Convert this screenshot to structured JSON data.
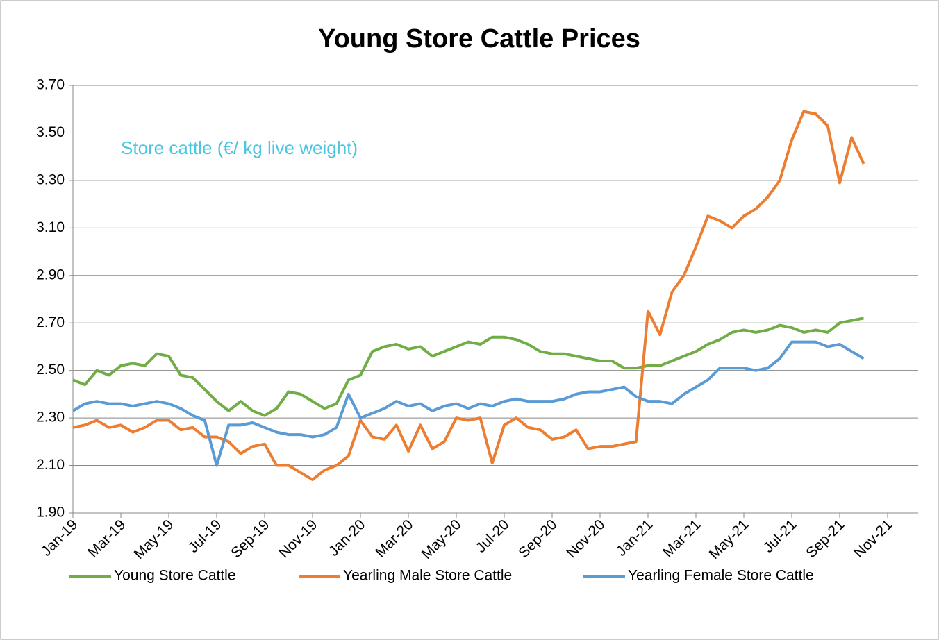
{
  "chart_data": {
    "type": "line",
    "title": "Young Store Cattle Prices",
    "annotation": "Store cattle (€/ kg live weight)",
    "x": [
      0,
      0.5,
      1,
      1.5,
      2,
      2.5,
      3,
      3.5,
      4,
      4.5,
      5,
      5.5,
      6,
      6.5,
      7,
      7.5,
      8,
      8.5,
      9,
      9.5,
      10,
      10.5,
      11,
      11.5,
      12,
      12.5,
      13,
      13.5,
      14,
      14.5,
      15,
      15.5,
      16,
      16.5,
      17,
      17.5,
      18,
      18.5,
      19,
      19.5,
      20,
      20.5,
      21,
      21.5,
      22,
      22.5,
      23,
      23.5,
      24,
      24.5,
      25,
      25.5,
      26,
      26.5,
      27,
      27.5,
      28,
      28.5,
      29,
      29.5,
      30,
      30.5,
      31,
      31.5,
      32,
      32.5,
      33
    ],
    "xlim": [
      0,
      34
    ],
    "xticks": [
      {
        "value": 0,
        "label": "Jan-19"
      },
      {
        "value": 2,
        "label": "Mar-19"
      },
      {
        "value": 4,
        "label": "May-19"
      },
      {
        "value": 6,
        "label": "Jul-19"
      },
      {
        "value": 8,
        "label": "Sep-19"
      },
      {
        "value": 10,
        "label": "Nov-19"
      },
      {
        "value": 12,
        "label": "Jan-20"
      },
      {
        "value": 14,
        "label": "Mar-20"
      },
      {
        "value": 16,
        "label": "May-20"
      },
      {
        "value": 18,
        "label": "Jul-20"
      },
      {
        "value": 20,
        "label": "Sep-20"
      },
      {
        "value": 22,
        "label": "Nov-20"
      },
      {
        "value": 24,
        "label": "Jan-21"
      },
      {
        "value": 26,
        "label": "Mar-21"
      },
      {
        "value": 28,
        "label": "May-21"
      },
      {
        "value": 30,
        "label": "Jul-21"
      },
      {
        "value": 32,
        "label": "Sep-21"
      },
      {
        "value": 34,
        "label": "Nov-21"
      }
    ],
    "ylim": [
      1.9,
      3.7
    ],
    "yticks": [
      {
        "value": 1.9,
        "label": "1.90"
      },
      {
        "value": 2.1,
        "label": "2.10"
      },
      {
        "value": 2.3,
        "label": "2.30"
      },
      {
        "value": 2.5,
        "label": "2.50"
      },
      {
        "value": 2.7,
        "label": "2.70"
      },
      {
        "value": 2.9,
        "label": "2.90"
      },
      {
        "value": 3.1,
        "label": "3.10"
      },
      {
        "value": 3.3,
        "label": "3.30"
      },
      {
        "value": 3.5,
        "label": "3.50"
      },
      {
        "value": 3.7,
        "label": "3.70"
      }
    ],
    "grid": true,
    "legend": "bottom",
    "series": [
      {
        "name": "Young Store Cattle",
        "color": "#70ad47",
        "values": [
          2.46,
          2.44,
          2.5,
          2.48,
          2.52,
          2.53,
          2.52,
          2.57,
          2.56,
          2.48,
          2.47,
          2.42,
          2.37,
          2.33,
          2.37,
          2.33,
          2.31,
          2.34,
          2.41,
          2.4,
          2.37,
          2.34,
          2.36,
          2.46,
          2.48,
          2.58,
          2.6,
          2.61,
          2.59,
          2.6,
          2.56,
          2.58,
          2.6,
          2.62,
          2.61,
          2.64,
          2.64,
          2.63,
          2.61,
          2.58,
          2.57,
          2.57,
          2.56,
          2.55,
          2.54,
          2.54,
          2.51,
          2.51,
          2.52,
          2.52,
          2.54,
          2.56,
          2.58,
          2.61,
          2.63,
          2.66,
          2.67,
          2.66,
          2.67,
          2.69,
          2.68,
          2.66,
          2.67,
          2.66,
          2.7,
          2.71,
          2.72
        ]
      },
      {
        "name": "Yearling Male Store Cattle",
        "color": "#ed7d31",
        "values": [
          2.26,
          2.27,
          2.29,
          2.26,
          2.27,
          2.24,
          2.26,
          2.29,
          2.29,
          2.25,
          2.26,
          2.22,
          2.22,
          2.2,
          2.15,
          2.18,
          2.19,
          2.1,
          2.1,
          2.07,
          2.04,
          2.08,
          2.1,
          2.14,
          2.29,
          2.22,
          2.21,
          2.27,
          2.16,
          2.27,
          2.17,
          2.2,
          2.3,
          2.29,
          2.3,
          2.11,
          2.27,
          2.3,
          2.26,
          2.25,
          2.21,
          2.22,
          2.25,
          2.17,
          2.18,
          2.18,
          2.19,
          2.2,
          2.75,
          2.65,
          2.83,
          2.9,
          3.02,
          3.15,
          3.13,
          3.1,
          3.15,
          3.18,
          3.23,
          3.3,
          3.47,
          3.59,
          3.58,
          3.53,
          3.29,
          3.48,
          3.37
        ]
      },
      {
        "name": "Yearling Female Store Cattle",
        "color": "#5b9bd5",
        "values": [
          2.33,
          2.36,
          2.37,
          2.36,
          2.36,
          2.35,
          2.36,
          2.37,
          2.36,
          2.34,
          2.31,
          2.29,
          2.1,
          2.27,
          2.27,
          2.28,
          2.26,
          2.24,
          2.23,
          2.23,
          2.22,
          2.23,
          2.26,
          2.4,
          2.3,
          2.32,
          2.34,
          2.37,
          2.35,
          2.36,
          2.33,
          2.35,
          2.36,
          2.34,
          2.36,
          2.35,
          2.37,
          2.38,
          2.37,
          2.37,
          2.37,
          2.38,
          2.4,
          2.41,
          2.41,
          2.42,
          2.43,
          2.39,
          2.37,
          2.37,
          2.36,
          2.4,
          2.43,
          2.46,
          2.51,
          2.51,
          2.51,
          2.5,
          2.51,
          2.55,
          2.62,
          2.62,
          2.62,
          2.6,
          2.61,
          2.58,
          2.55
        ]
      }
    ]
  }
}
